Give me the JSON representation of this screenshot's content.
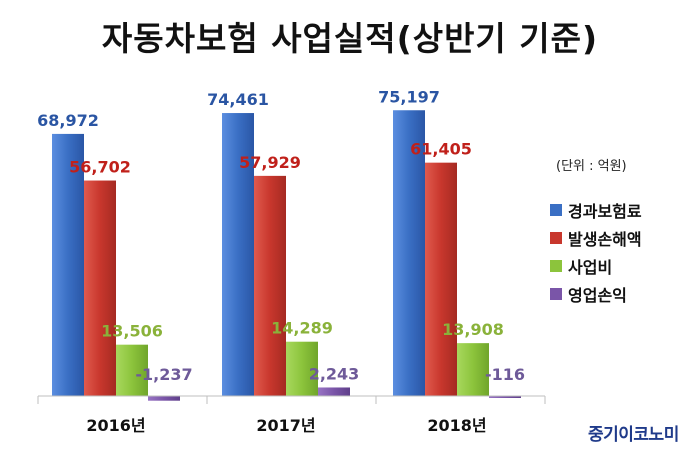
{
  "chart_data": {
    "type": "bar",
    "title": "자동차보험 사업실적(상반기 기준)",
    "unit_note": "(단위 : 억원)",
    "categories": [
      "2016년",
      "2017년",
      "2018년"
    ],
    "series": [
      {
        "name": "경과보험료",
        "values": [
          68972,
          74461,
          75197
        ],
        "labels": [
          "68,972",
          "74,461",
          "75,197"
        ],
        "color": "#3a6fc4",
        "label_color": "#2a55a3"
      },
      {
        "name": "발생손해액",
        "values": [
          56702,
          57929,
          61405
        ],
        "labels": [
          "56,702",
          "57,929",
          "61,405"
        ],
        "color": "#c8372d",
        "label_color": "#c0201a"
      },
      {
        "name": "사업비",
        "values": [
          13506,
          14289,
          13908
        ],
        "labels": [
          "13,506",
          "14,289",
          "13,908"
        ],
        "color": "#8cc43c",
        "label_color": "#8ab23a"
      },
      {
        "name": "영업손익",
        "values": [
          -1237,
          2243,
          -116
        ],
        "labels": [
          "-1,237",
          "2,243",
          "-116"
        ],
        "color": "#7a55a8",
        "label_color": "#6e5a99"
      }
    ],
    "legend_position": "right",
    "grid": false
  },
  "source": "중기이코노미"
}
